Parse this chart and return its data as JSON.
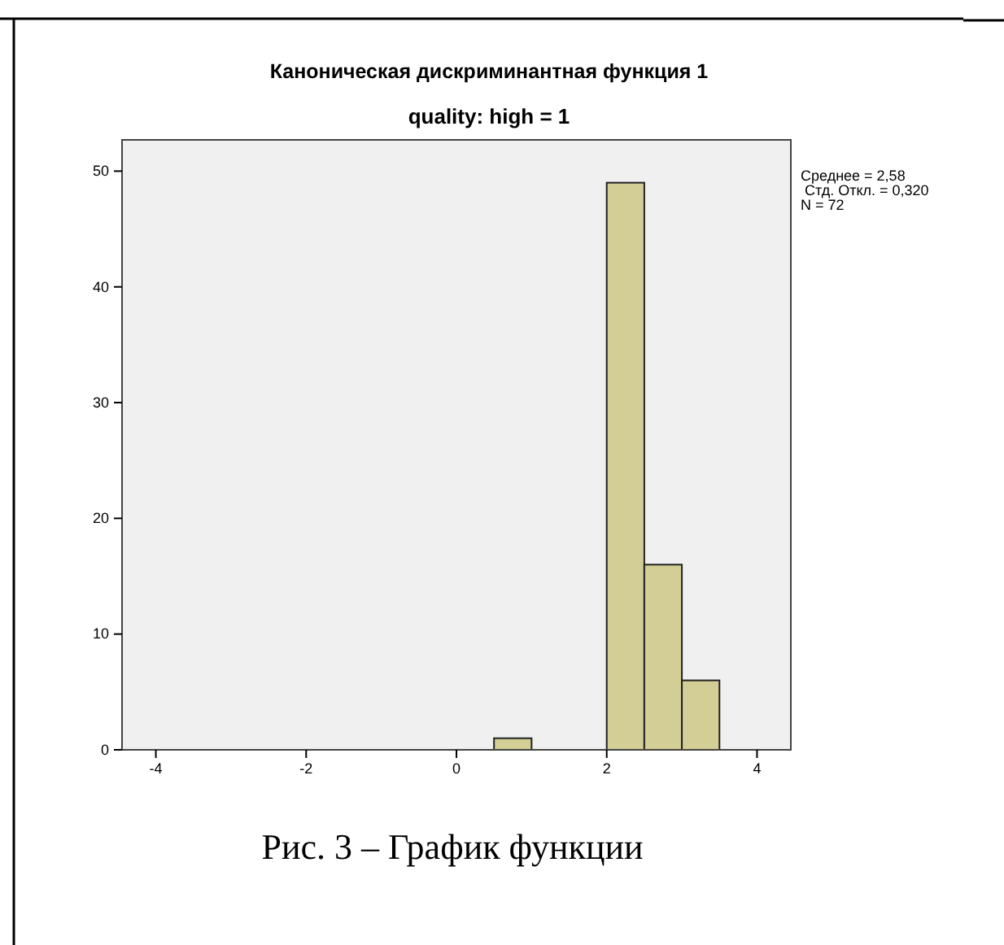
{
  "chart_data": {
    "type": "histogram",
    "title": "Каноническая дискриминантная функция 1",
    "subtitle": "quality: high = 1",
    "bins": [
      0.5,
      1,
      1.5,
      2,
      2.5,
      3,
      3.5
    ],
    "values": [
      1,
      0,
      0,
      49,
      16,
      6
    ],
    "color": "#d3ce96",
    "xlim": [
      -4.45,
      4.45
    ],
    "xticks": [
      -4,
      -2,
      0,
      2,
      4
    ],
    "ylim": [
      0,
      52.7
    ],
    "yticks": [
      0,
      10,
      20,
      30,
      40,
      50
    ],
    "annotations": [
      "Среднее = 2,58",
      " Стд. Откл. = 0,320",
      "N = 72",
      "Рис. 3 – График функции"
    ]
  }
}
